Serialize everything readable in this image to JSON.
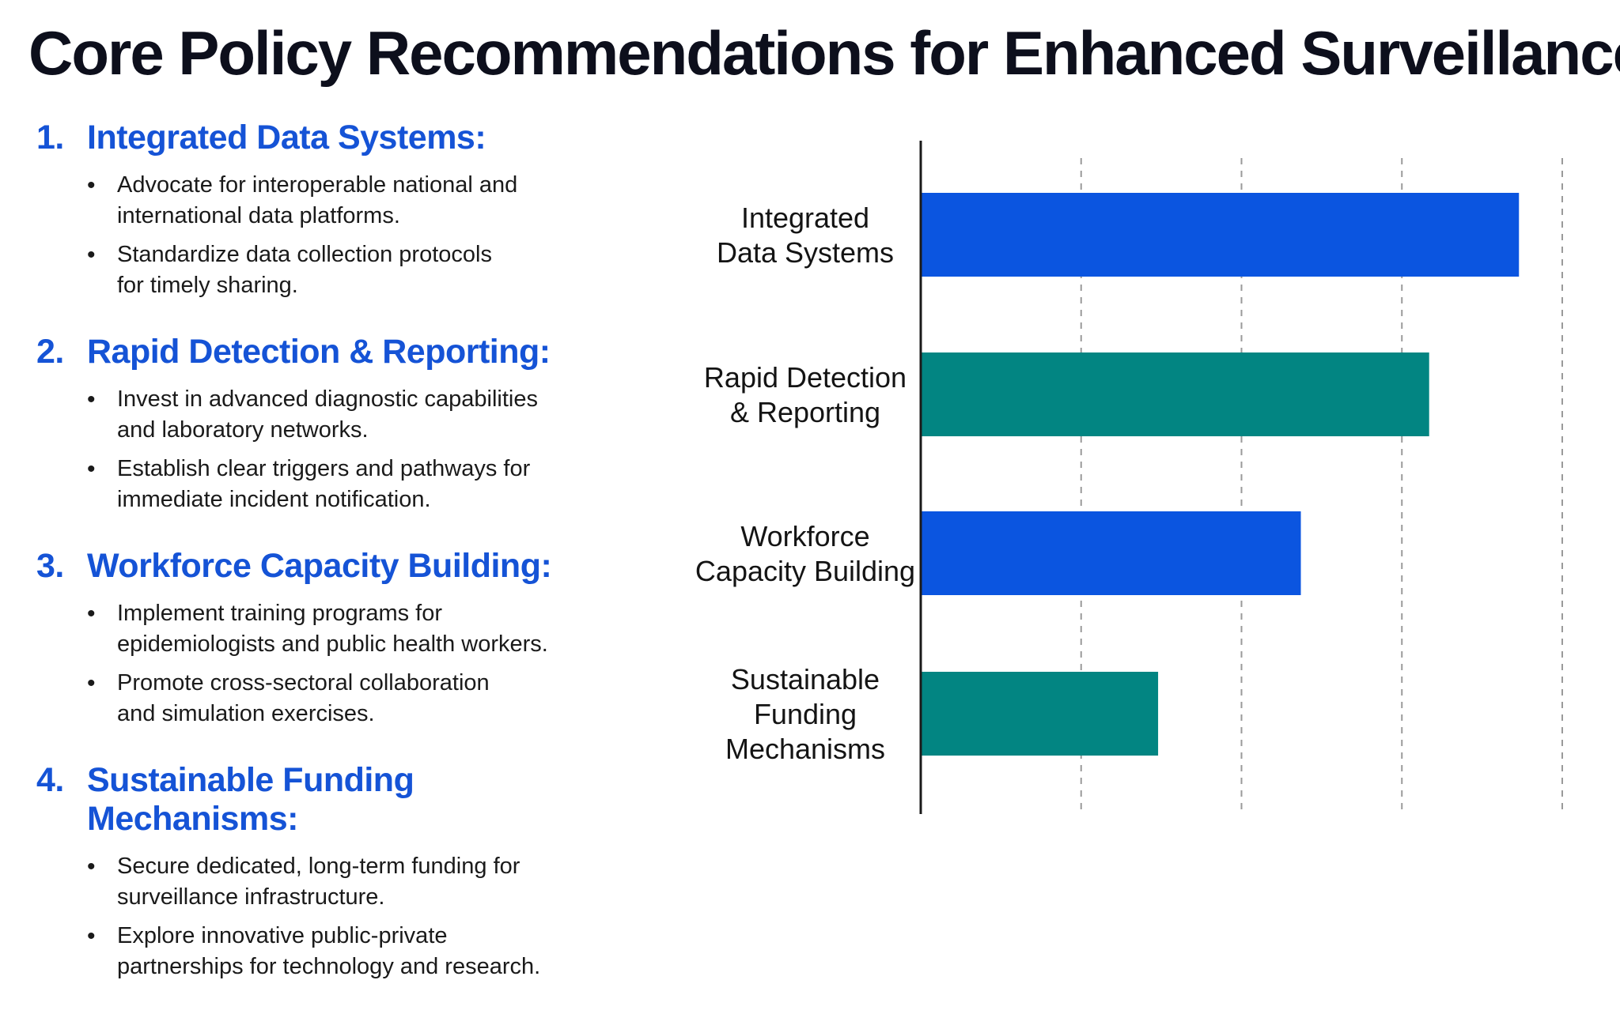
{
  "title": "Core Policy Recommendations for Enhanced Surveillance",
  "recommendations": [
    {
      "number": "1.",
      "heading": "Integrated Data Systems:",
      "bullets": [
        "Advocate for interoperable national and international data platforms.",
        "Standardize data collection protocols for timely sharing."
      ]
    },
    {
      "number": "2.",
      "heading": "Rapid Detection & Reporting:",
      "bullets": [
        "Invest in advanced diagnostic capabilities and laboratory networks.",
        "Establish clear triggers and pathways for immediate incident notification."
      ]
    },
    {
      "number": "3.",
      "heading": "Workforce Capacity Building:",
      "bullets": [
        "Implement training programs for epidemiologists and public health workers.",
        "Promote cross-sectoral collaboration and simulation exercises."
      ]
    },
    {
      "number": "4.",
      "heading": "Sustainable Funding Mechanisms:",
      "bullets": [
        "Secure dedicated, long-term funding for surveillance infrastructure.",
        "Explore innovative public-private partnerships for technology and research."
      ]
    }
  ],
  "chart_data": {
    "type": "bar",
    "orientation": "horizontal",
    "categories": [
      [
        "Integrated",
        "Data Systems"
      ],
      [
        "Rapid Detection",
        "& Reporting"
      ],
      [
        "Workforce",
        "Capacity Building"
      ],
      [
        "Sustainable",
        "Funding",
        "Mechanisms"
      ]
    ],
    "values": [
      3.73,
      3.17,
      2.37,
      1.48
    ],
    "bar_colors": [
      "#0b55e0",
      "#028582",
      "#0b55e0",
      "#028582"
    ],
    "xlim": [
      0,
      4
    ],
    "x_ticks_labeled": false,
    "grid": "vertical dashed",
    "legend": "none"
  }
}
